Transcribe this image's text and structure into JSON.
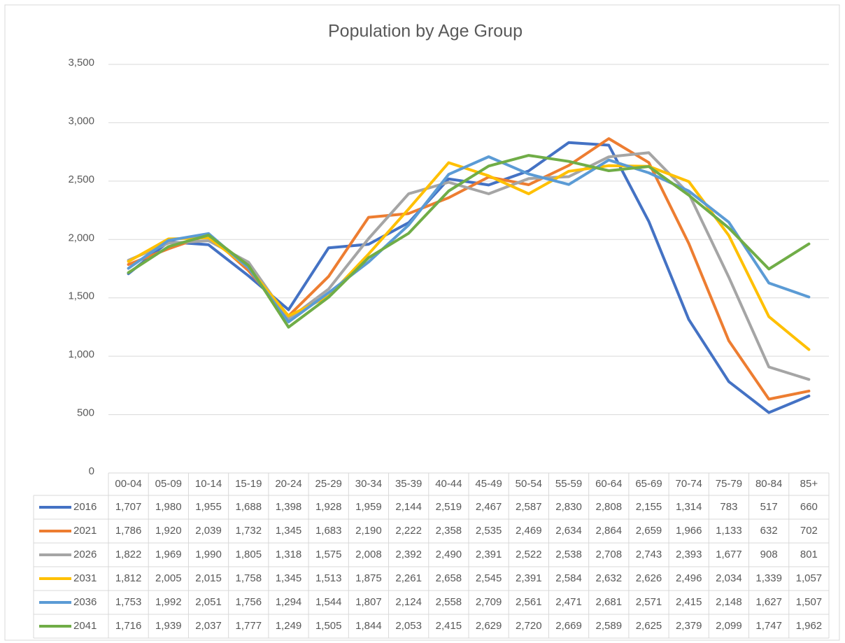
{
  "chart_data": {
    "type": "line",
    "title": "Population by Age Group",
    "categories": [
      "00-04",
      "05-09",
      "10-14",
      "15-19",
      "20-24",
      "25-29",
      "30-34",
      "35-39",
      "40-44",
      "45-49",
      "50-54",
      "55-59",
      "60-64",
      "65-69",
      "70-74",
      "75-79",
      "80-84",
      "85+"
    ],
    "ylim": [
      0,
      3500
    ],
    "yticks": [
      0,
      500,
      {
        "value": 1000,
        "label": "1,000"
      },
      {
        "value": 1500,
        "label": "1,500"
      },
      {
        "value": 2000,
        "label": "2,000"
      },
      {
        "value": 2500,
        "label": "2,500"
      },
      {
        "value": 3000,
        "label": "3,000"
      },
      {
        "value": 3500,
        "label": "3,500"
      }
    ],
    "grid": true,
    "series": [
      {
        "name": "2016",
        "color": "#4472c4",
        "values": [
          1707,
          1980,
          1955,
          1688,
          1398,
          1928,
          1959,
          2144,
          2519,
          2467,
          2587,
          2830,
          2808,
          2155,
          1314,
          783,
          517,
          660
        ],
        "value_labels": [
          "1,707",
          "1,980",
          "1,955",
          "1,688",
          "1,398",
          "1,928",
          "1,959",
          "2,144",
          "2,519",
          "2,467",
          "2,587",
          "2,830",
          "2,808",
          "2,155",
          "1,314",
          "783",
          "517",
          "660"
        ]
      },
      {
        "name": "2021",
        "color": "#ed7d31",
        "values": [
          1786,
          1920,
          2039,
          1732,
          1345,
          1683,
          2190,
          2222,
          2358,
          2535,
          2469,
          2634,
          2864,
          2659,
          1966,
          1133,
          632,
          702
        ],
        "value_labels": [
          "1,786",
          "1,920",
          "2,039",
          "1,732",
          "1,345",
          "1,683",
          "2,190",
          "2,222",
          "2,358",
          "2,535",
          "2,469",
          "2,634",
          "2,864",
          "2,659",
          "1,966",
          "1,133",
          "632",
          "702"
        ]
      },
      {
        "name": "2026",
        "color": "#a5a5a5",
        "values": [
          1822,
          1969,
          1990,
          1805,
          1318,
          1575,
          2008,
          2392,
          2490,
          2391,
          2522,
          2538,
          2708,
          2743,
          2393,
          1677,
          908,
          801
        ],
        "value_labels": [
          "1,822",
          "1,969",
          "1,990",
          "1,805",
          "1,318",
          "1,575",
          "2,008",
          "2,392",
          "2,490",
          "2,391",
          "2,522",
          "2,538",
          "2,708",
          "2,743",
          "2,393",
          "1,677",
          "908",
          "801"
        ]
      },
      {
        "name": "2031",
        "color": "#ffc000",
        "values": [
          1812,
          2005,
          2015,
          1758,
          1345,
          1513,
          1875,
          2261,
          2658,
          2545,
          2391,
          2584,
          2632,
          2626,
          2496,
          2034,
          1339,
          1057
        ],
        "value_labels": [
          "1,812",
          "2,005",
          "2,015",
          "1,758",
          "1,345",
          "1,513",
          "1,875",
          "2,261",
          "2,658",
          "2,545",
          "2,391",
          "2,584",
          "2,632",
          "2,626",
          "2,496",
          "2,034",
          "1,339",
          "1,057"
        ]
      },
      {
        "name": "2036",
        "color": "#5b9bd5",
        "values": [
          1753,
          1992,
          2051,
          1756,
          1294,
          1544,
          1807,
          2124,
          2558,
          2709,
          2561,
          2471,
          2681,
          2571,
          2415,
          2148,
          1627,
          1507
        ],
        "value_labels": [
          "1,753",
          "1,992",
          "2,051",
          "1,756",
          "1,294",
          "1,544",
          "1,807",
          "2,124",
          "2,558",
          "2,709",
          "2,561",
          "2,471",
          "2,681",
          "2,571",
          "2,415",
          "2,148",
          "1,627",
          "1,507"
        ]
      },
      {
        "name": "2041",
        "color": "#70ad47",
        "values": [
          1716,
          1939,
          2037,
          1777,
          1249,
          1505,
          1844,
          2053,
          2415,
          2629,
          2720,
          2669,
          2589,
          2625,
          2379,
          2099,
          1747,
          1962
        ],
        "value_labels": [
          "1,716",
          "1,939",
          "2,037",
          "1,777",
          "1,249",
          "1,505",
          "1,844",
          "2,053",
          "2,415",
          "2,629",
          "2,720",
          "2,669",
          "2,589",
          "2,625",
          "2,379",
          "2,099",
          "1,747",
          "1,962"
        ]
      }
    ]
  }
}
